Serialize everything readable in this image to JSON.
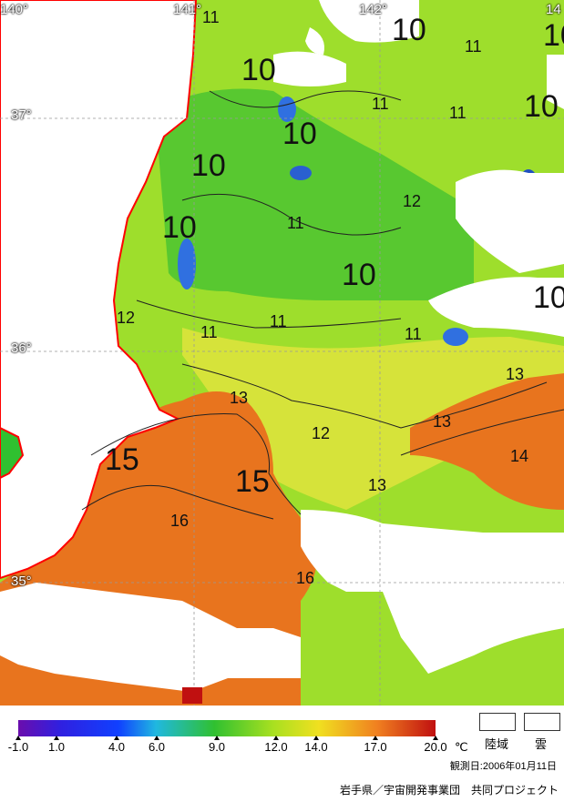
{
  "map": {
    "longitude_labels": [
      "140°",
      "141°",
      "142°",
      "14"
    ],
    "latitude_labels": [
      "37°",
      "36°",
      "35°"
    ],
    "isotherm_labels": [
      "11",
      "11",
      "10",
      "10",
      "10",
      "10",
      "10",
      "11",
      "11",
      "10",
      "10",
      "12",
      "11",
      "10",
      "10",
      "12",
      "11",
      "11",
      "11",
      "13",
      "13",
      "13",
      "12",
      "15",
      "15",
      "13",
      "14",
      "16",
      "16"
    ]
  },
  "legend": {
    "scale_ticks": [
      "-1.0",
      "1.0",
      "4.0",
      "6.0",
      "9.0",
      "12.0",
      "14.0",
      "17.0",
      "20.0"
    ],
    "unit": "℃",
    "land_label": "陸域",
    "cloud_label": "雲",
    "observation_date": "観測日:2006年01月11日",
    "credit": "岩手県／宇宙開発事業団　共同プロジェクト",
    "colors": {
      "min": "#6a0dad",
      "blue": "#1040ff",
      "cyan": "#20b8e0",
      "green": "#30c030",
      "yellowgreen": "#a8e020",
      "yellow": "#f0e020",
      "orange": "#f08020",
      "red": "#c01010",
      "coast": "#ff0000",
      "land_cloud": "#ffffff"
    }
  }
}
